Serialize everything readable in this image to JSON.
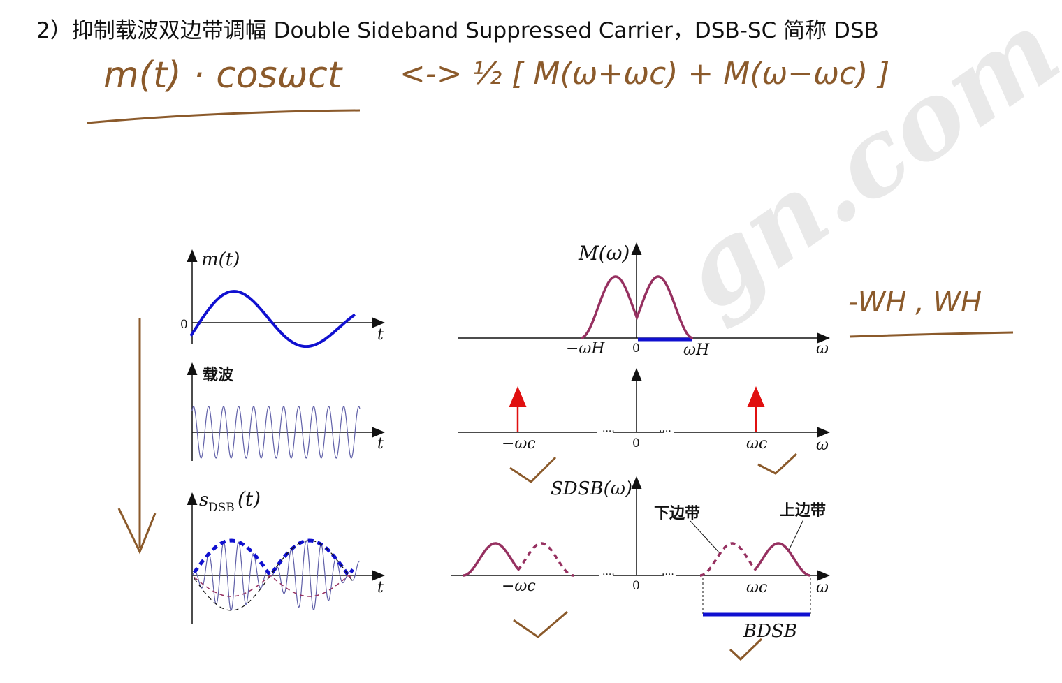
{
  "heading": "2）抑制载波双边带调幅 Double Sideband Suppressed Carrier，DSB-SC  简称 DSB",
  "annotations": {
    "left_formula": "m(t) · cosωct",
    "right_formula": "<-> ½ [ M(ω+ωc) + M(ω−ωc) ]",
    "range": "-WH , WH"
  },
  "panels": {
    "mt": {
      "ylabel": "m(t)",
      "zero": "0",
      "xlabel": "t"
    },
    "carrier": {
      "ylabel": "载波",
      "xlabel": "t"
    },
    "sdsb": {
      "ylabel_main": "s",
      "ylabel_sub": "DSB",
      "ylabel_tail": "(t)",
      "xlabel": "t"
    },
    "M": {
      "ylabel": "M(ω)",
      "neg_wh": "−ωH",
      "zero": "0",
      "wh": "ωH",
      "xlabel": "ω"
    },
    "carrier_spec": {
      "neg_wc": "−ωc",
      "zero": "0",
      "wc": "ωc",
      "xlabel": "ω",
      "dots": "····"
    },
    "S": {
      "ylabel": "SDSB(ω)",
      "lower": "下边带",
      "upper": "上边带",
      "neg_wc": "−ωc",
      "zero": "0",
      "wc": "ωc",
      "xlabel": "ω",
      "bw": "BDSB",
      "dots": "····"
    }
  },
  "colors": {
    "signal": "#1010d0",
    "spectrum": "#963060",
    "impulse": "#e01010",
    "ink": "#8B5A2B",
    "carrier": "#6060a8"
  }
}
